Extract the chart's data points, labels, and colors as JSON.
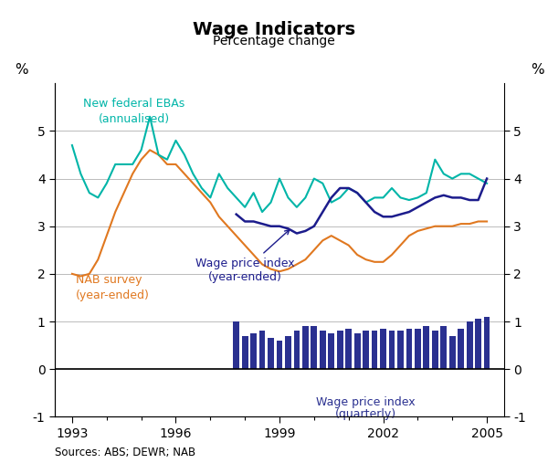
{
  "title": "Wage Indicators",
  "subtitle": "Percentage change",
  "ylabel_left": "%",
  "ylabel_right": "%",
  "source": "Sources: ABS; DEWR; NAB",
  "ylim_main": [
    -1,
    6
  ],
  "yticks_main": [
    -1,
    0,
    1,
    2,
    3,
    4,
    5
  ],
  "xlim": [
    1992.5,
    2005.5
  ],
  "xticks": [
    1993,
    1996,
    1999,
    2002,
    2005
  ],
  "eba_color": "#00B5A8",
  "wpi_ye_color": "#1C1C8C",
  "nab_color": "#E07820",
  "wpi_q_color": "#2A3090",
  "nab_x": [
    1993.0,
    1993.25,
    1993.5,
    1993.75,
    1994.0,
    1994.25,
    1994.5,
    1994.75,
    1995.0,
    1995.25,
    1995.5,
    1995.75,
    1996.0,
    1996.25,
    1996.5,
    1996.75,
    1997.0,
    1997.25,
    1997.5,
    1997.75,
    1998.0,
    1998.25,
    1998.5,
    1998.75,
    1999.0,
    1999.25,
    1999.5,
    1999.75,
    2000.0,
    2000.25,
    2000.5,
    2000.75,
    2001.0,
    2001.25,
    2001.5,
    2001.75,
    2002.0,
    2002.25,
    2002.5,
    2002.75,
    2003.0,
    2003.25,
    2003.5,
    2003.75,
    2004.0,
    2004.25,
    2004.5,
    2004.75,
    2005.0
  ],
  "nab_y": [
    2.0,
    1.95,
    2.0,
    2.3,
    2.8,
    3.3,
    3.7,
    4.1,
    4.4,
    4.6,
    4.5,
    4.3,
    4.3,
    4.1,
    3.9,
    3.7,
    3.5,
    3.2,
    3.0,
    2.8,
    2.6,
    2.4,
    2.2,
    2.1,
    2.05,
    2.1,
    2.2,
    2.3,
    2.5,
    2.7,
    2.8,
    2.7,
    2.6,
    2.4,
    2.3,
    2.25,
    2.25,
    2.4,
    2.6,
    2.8,
    2.9,
    2.95,
    3.0,
    3.0,
    3.0,
    3.05,
    3.05,
    3.1,
    3.1
  ],
  "eba_x": [
    1993.0,
    1993.25,
    1993.5,
    1993.75,
    1994.0,
    1994.25,
    1994.5,
    1994.75,
    1995.0,
    1995.25,
    1995.5,
    1995.75,
    1996.0,
    1996.25,
    1996.5,
    1996.75,
    1997.0,
    1997.25,
    1997.5,
    1997.75,
    1998.0,
    1998.25,
    1998.5,
    1998.75,
    1999.0,
    1999.25,
    1999.5,
    1999.75,
    2000.0,
    2000.25,
    2000.5,
    2000.75,
    2001.0,
    2001.25,
    2001.5,
    2001.75,
    2002.0,
    2002.25,
    2002.5,
    2002.75,
    2003.0,
    2003.25,
    2003.5,
    2003.75,
    2004.0,
    2004.25,
    2004.5,
    2004.75,
    2005.0
  ],
  "eba_y": [
    4.7,
    4.1,
    3.7,
    3.6,
    3.9,
    4.3,
    4.3,
    4.3,
    4.6,
    5.3,
    4.5,
    4.4,
    4.8,
    4.5,
    4.1,
    3.8,
    3.6,
    4.1,
    3.8,
    3.6,
    3.4,
    3.7,
    3.3,
    3.5,
    4.0,
    3.6,
    3.4,
    3.6,
    4.0,
    3.9,
    3.5,
    3.6,
    3.8,
    3.7,
    3.5,
    3.6,
    3.6,
    3.8,
    3.6,
    3.55,
    3.6,
    3.7,
    4.4,
    4.1,
    4.0,
    4.1,
    4.1,
    4.0,
    3.9
  ],
  "wpi_ye_x": [
    1997.75,
    1998.0,
    1998.25,
    1998.5,
    1998.75,
    1999.0,
    1999.25,
    1999.5,
    1999.75,
    2000.0,
    2000.25,
    2000.5,
    2000.75,
    2001.0,
    2001.25,
    2001.5,
    2001.75,
    2002.0,
    2002.25,
    2002.5,
    2002.75,
    2003.0,
    2003.25,
    2003.5,
    2003.75,
    2004.0,
    2004.25,
    2004.5,
    2004.75,
    2005.0
  ],
  "wpi_ye_y": [
    3.25,
    3.1,
    3.1,
    3.05,
    3.0,
    3.0,
    2.95,
    2.85,
    2.9,
    3.0,
    3.3,
    3.6,
    3.8,
    3.8,
    3.7,
    3.5,
    3.3,
    3.2,
    3.2,
    3.25,
    3.3,
    3.4,
    3.5,
    3.6,
    3.65,
    3.6,
    3.6,
    3.55,
    3.55,
    4.0
  ],
  "wpi_q_x": [
    1997.75,
    1998.0,
    1998.25,
    1998.5,
    1998.75,
    1999.0,
    1999.25,
    1999.5,
    1999.75,
    2000.0,
    2000.25,
    2000.5,
    2000.75,
    2001.0,
    2001.25,
    2001.5,
    2001.75,
    2002.0,
    2002.25,
    2002.5,
    2002.75,
    2003.0,
    2003.25,
    2003.5,
    2003.75,
    2004.0,
    2004.25,
    2004.5,
    2004.75,
    2005.0
  ],
  "wpi_q_y": [
    1.0,
    0.7,
    0.75,
    0.8,
    0.65,
    0.6,
    0.7,
    0.8,
    0.9,
    0.9,
    0.8,
    0.75,
    0.8,
    0.85,
    0.75,
    0.8,
    0.8,
    0.85,
    0.8,
    0.8,
    0.85,
    0.85,
    0.9,
    0.8,
    0.9,
    0.7,
    0.85,
    1.0,
    1.05,
    1.1
  ],
  "bar_width": 0.18
}
